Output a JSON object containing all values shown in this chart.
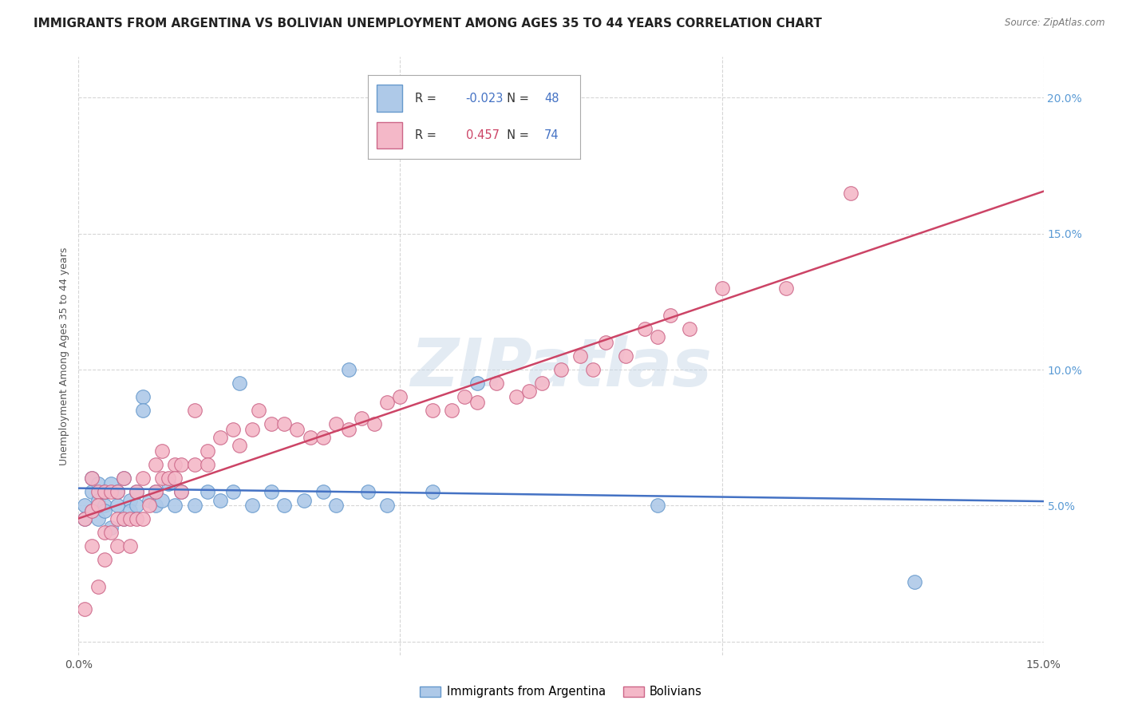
{
  "title": "IMMIGRANTS FROM ARGENTINA VS BOLIVIAN UNEMPLOYMENT AMONG AGES 35 TO 44 YEARS CORRELATION CHART",
  "source": "Source: ZipAtlas.com",
  "ylabel": "Unemployment Among Ages 35 to 44 years",
  "xlim": [
    0.0,
    0.15
  ],
  "ylim": [
    -0.005,
    0.215
  ],
  "xticks": [
    0.0,
    0.05,
    0.1,
    0.15
  ],
  "yticks": [
    0.0,
    0.05,
    0.1,
    0.15,
    0.2
  ],
  "xticklabels": [
    "0.0%",
    "",
    "",
    "15.0%"
  ],
  "yticklabels_right": [
    "",
    "5.0%",
    "10.0%",
    "15.0%",
    "20.0%"
  ],
  "series": [
    {
      "label": "Immigrants from Argentina",
      "R": -0.023,
      "N": 48,
      "color": "#aec9e8",
      "edge_color": "#6699cc",
      "line_color": "#4472c4",
      "x": [
        0.001,
        0.001,
        0.002,
        0.002,
        0.002,
        0.003,
        0.003,
        0.003,
        0.004,
        0.004,
        0.004,
        0.005,
        0.005,
        0.006,
        0.006,
        0.007,
        0.007,
        0.008,
        0.008,
        0.009,
        0.009,
        0.01,
        0.01,
        0.011,
        0.012,
        0.012,
        0.013,
        0.014,
        0.015,
        0.016,
        0.018,
        0.02,
        0.022,
        0.024,
        0.025,
        0.027,
        0.03,
        0.032,
        0.035,
        0.038,
        0.04,
        0.042,
        0.045,
        0.048,
        0.055,
        0.062,
        0.09,
        0.13
      ],
      "y": [
        0.045,
        0.05,
        0.055,
        0.06,
        0.048,
        0.052,
        0.045,
        0.058,
        0.05,
        0.055,
        0.048,
        0.042,
        0.058,
        0.05,
        0.055,
        0.045,
        0.06,
        0.052,
        0.048,
        0.055,
        0.05,
        0.09,
        0.085,
        0.052,
        0.055,
        0.05,
        0.052,
        0.058,
        0.05,
        0.055,
        0.05,
        0.055,
        0.052,
        0.055,
        0.095,
        0.05,
        0.055,
        0.05,
        0.052,
        0.055,
        0.05,
        0.1,
        0.055,
        0.05,
        0.055,
        0.095,
        0.05,
        0.022
      ]
    },
    {
      "label": "Bolivians",
      "R": 0.457,
      "N": 74,
      "color": "#f4b8c8",
      "edge_color": "#cc6688",
      "line_color": "#cc4466",
      "x": [
        0.001,
        0.001,
        0.002,
        0.002,
        0.002,
        0.003,
        0.003,
        0.003,
        0.004,
        0.004,
        0.004,
        0.005,
        0.005,
        0.006,
        0.006,
        0.006,
        0.007,
        0.007,
        0.008,
        0.008,
        0.009,
        0.009,
        0.01,
        0.01,
        0.011,
        0.012,
        0.012,
        0.013,
        0.013,
        0.014,
        0.015,
        0.015,
        0.016,
        0.016,
        0.018,
        0.018,
        0.02,
        0.02,
        0.022,
        0.024,
        0.025,
        0.027,
        0.028,
        0.03,
        0.032,
        0.034,
        0.036,
        0.038,
        0.04,
        0.042,
        0.044,
        0.046,
        0.048,
        0.05,
        0.055,
        0.058,
        0.06,
        0.062,
        0.065,
        0.068,
        0.07,
        0.072,
        0.075,
        0.078,
        0.08,
        0.082,
        0.085,
        0.088,
        0.09,
        0.092,
        0.095,
        0.1,
        0.11,
        0.12
      ],
      "y": [
        0.045,
        0.012,
        0.035,
        0.06,
        0.048,
        0.02,
        0.055,
        0.05,
        0.04,
        0.055,
        0.03,
        0.055,
        0.04,
        0.055,
        0.045,
        0.035,
        0.06,
        0.045,
        0.045,
        0.035,
        0.045,
        0.055,
        0.045,
        0.06,
        0.05,
        0.055,
        0.065,
        0.06,
        0.07,
        0.06,
        0.065,
        0.06,
        0.055,
        0.065,
        0.065,
        0.085,
        0.07,
        0.065,
        0.075,
        0.078,
        0.072,
        0.078,
        0.085,
        0.08,
        0.08,
        0.078,
        0.075,
        0.075,
        0.08,
        0.078,
        0.082,
        0.08,
        0.088,
        0.09,
        0.085,
        0.085,
        0.09,
        0.088,
        0.095,
        0.09,
        0.092,
        0.095,
        0.1,
        0.105,
        0.1,
        0.11,
        0.105,
        0.115,
        0.112,
        0.12,
        0.115,
        0.13,
        0.13,
        0.165
      ]
    }
  ],
  "bg_color": "#ffffff",
  "grid_color": "#cccccc",
  "watermark": "ZIPatlas",
  "title_fontsize": 11,
  "axis_fontsize": 9,
  "tick_fontsize": 10,
  "legend_fontsize": 10
}
